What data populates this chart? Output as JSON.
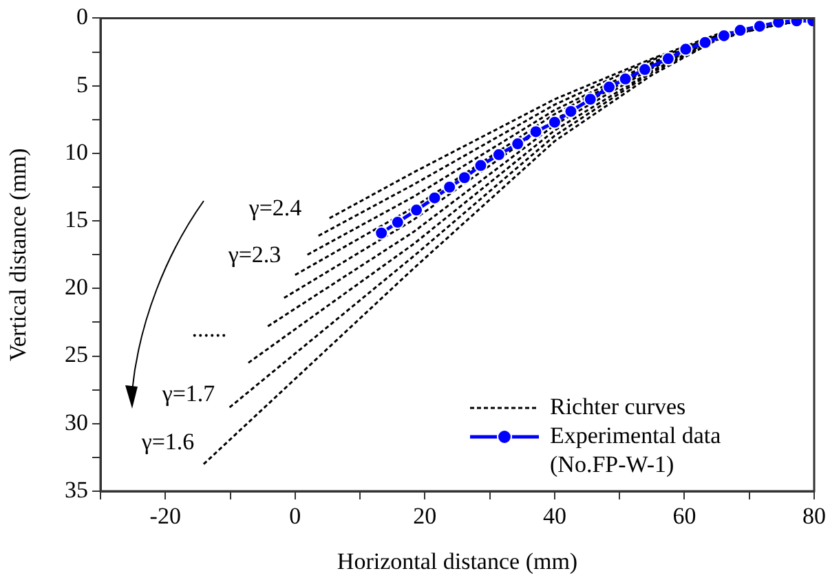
{
  "chart_data": {
    "type": "line",
    "xlabel": "Horizontal distance (mm)",
    "ylabel": "Vertical distance (mm)",
    "xlim": [
      -30,
      80
    ],
    "xticks": [
      {
        "value": -30,
        "label": null
      },
      -20,
      {
        "value": -10,
        "label": null
      },
      0,
      {
        "value": 10,
        "label": null
      },
      20,
      {
        "value": 30,
        "label": null
      },
      40,
      {
        "value": 50,
        "label": null
      },
      60,
      {
        "value": 70,
        "label": null
      },
      80
    ],
    "ylim": [
      35,
      0
    ],
    "yticks": [
      0,
      {
        "value": 2.5,
        "label": null
      },
      5,
      {
        "value": 7.5,
        "label": null
      },
      10,
      {
        "value": 12.5,
        "label": null
      },
      15,
      {
        "value": 17.5,
        "label": null
      },
      20,
      {
        "value": 22.5,
        "label": null
      },
      25,
      {
        "value": 27.5,
        "label": null
      },
      30,
      {
        "value": 32.5,
        "label": null
      },
      35
    ],
    "legend": "bottom right",
    "series": [
      {
        "name": "Richter curves",
        "color": "#000000",
        "line_style": "dashed",
        "marker": "none",
        "x": [
          -14.1,
          18.3,
          40,
          55,
          65,
          72,
          80
        ],
        "values": [
          33.0,
          18.5,
          9.1,
          4.2,
          1.6,
          0.7,
          0
        ]
      },
      {
        "color": "#000000",
        "line_style": "dashed",
        "marker": "none",
        "x": [
          -10.1,
          18.3,
          40,
          55,
          65,
          72,
          80
        ],
        "values": [
          28.8,
          17.6,
          8.7,
          4.0,
          1.6,
          0.7,
          0
        ]
      },
      {
        "color": "#000000",
        "line_style": "dashed",
        "marker": "none",
        "x": [
          -7.2,
          18.3,
          40,
          55,
          65,
          72,
          80
        ],
        "values": [
          25.5,
          16.7,
          8.3,
          3.9,
          1.5,
          0.7,
          0
        ]
      },
      {
        "color": "#000000",
        "line_style": "dashed",
        "marker": "none",
        "x": [
          -4.2,
          18.3,
          40,
          55,
          65,
          72,
          80
        ],
        "values": [
          22.8,
          15.8,
          7.9,
          3.7,
          1.5,
          0.7,
          0
        ]
      },
      {
        "color": "#000000",
        "line_style": "dashed",
        "marker": "none",
        "x": [
          -1.7,
          18.3,
          40,
          55,
          65,
          72,
          80
        ],
        "values": [
          20.7,
          14.9,
          7.5,
          3.6,
          1.4,
          0.7,
          0
        ]
      },
      {
        "color": "#000000",
        "line_style": "dashed",
        "marker": "none",
        "x": [
          0,
          18.3,
          40,
          55,
          65,
          72,
          80
        ],
        "values": [
          19.0,
          14.0,
          7.1,
          3.4,
          1.4,
          0.7,
          0
        ]
      },
      {
        "color": "#000000",
        "line_style": "dashed",
        "marker": "none",
        "x": [
          1.9,
          18.3,
          40,
          55,
          65,
          72,
          80
        ],
        "values": [
          17.5,
          13.2,
          6.8,
          3.3,
          1.3,
          0.7,
          0
        ]
      },
      {
        "color": "#000000",
        "line_style": "dashed",
        "marker": "none",
        "x": [
          3.6,
          18.3,
          40,
          55,
          65,
          72,
          80
        ],
        "values": [
          16.1,
          12.3,
          6.4,
          3.1,
          1.3,
          0.7,
          0
        ]
      },
      {
        "color": "#000000",
        "line_style": "dashed",
        "marker": "none",
        "x": [
          5.3,
          18.3,
          40,
          55,
          65,
          72,
          80
        ],
        "values": [
          14.8,
          11.4,
          6.0,
          3.0,
          1.2,
          0.7,
          0
        ]
      },
      {
        "name": "Experimental data (No.FP-W-1)",
        "color": "#0000ff",
        "line_style": "solid",
        "marker": "circle",
        "x": [
          13.3,
          15.8,
          18.7,
          21.5,
          23.8,
          26.1,
          28.6,
          31.4,
          34.3,
          37.1,
          40.0,
          42.5,
          45.5,
          48.4,
          50.9,
          53.9,
          57.5,
          60.2,
          63.2,
          66.1,
          68.6,
          71.6,
          74.5,
          77.3,
          79.8
        ],
        "values": [
          15.9,
          15.1,
          14.2,
          13.3,
          12.5,
          11.8,
          10.9,
          10.1,
          9.3,
          8.4,
          7.7,
          6.9,
          6.0,
          5.1,
          4.5,
          3.8,
          3.0,
          2.3,
          1.8,
          1.3,
          0.9,
          0.6,
          0.3,
          0.2,
          0.2
        ]
      }
    ],
    "annotations": [
      "γ=2.4",
      "γ=2.3",
      "......",
      "γ=1.7",
      "γ=1.6"
    ]
  }
}
